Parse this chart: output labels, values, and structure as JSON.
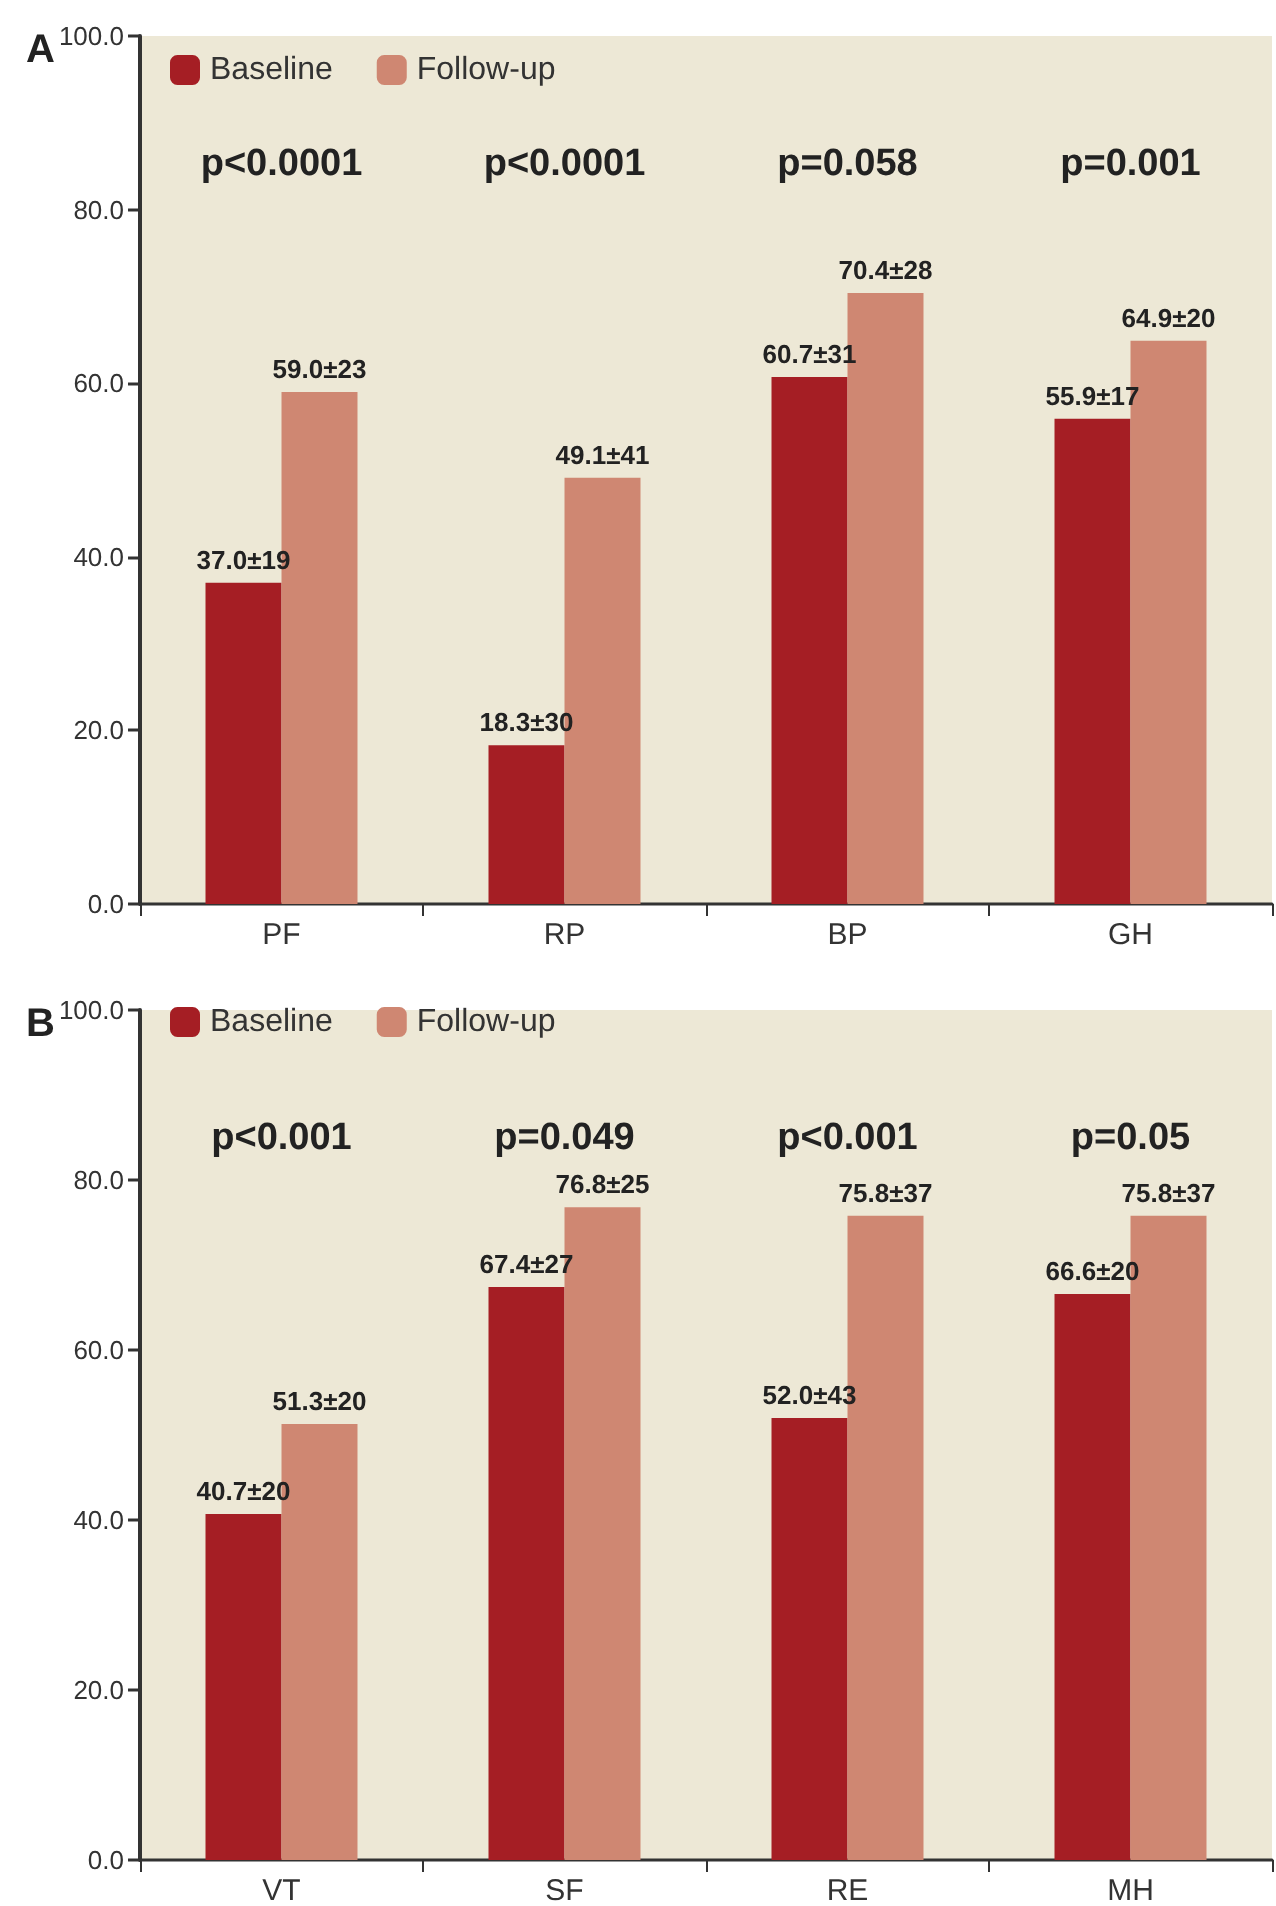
{
  "chart_data": [
    {
      "type": "bar",
      "title": "A",
      "categories": [
        "PF",
        "RP",
        "BP",
        "GH"
      ],
      "series": [
        {
          "name": "Baseline",
          "color": "#a51e24",
          "values": [
            37.0,
            18.3,
            60.7,
            55.9
          ],
          "value_labels": [
            "37.0±19",
            "18.3±30",
            "60.7±31",
            "55.9±17"
          ]
        },
        {
          "name": "Follow-up",
          "color": "#cf8772",
          "values": [
            59.0,
            49.1,
            70.4,
            64.9
          ],
          "value_labels": [
            "59.0±23",
            "49.1±41",
            "70.4±28",
            "64.9±20"
          ]
        }
      ],
      "ylim": [
        0,
        100
      ],
      "yticks": [
        {
          "value": 0,
          "label": "0.0"
        },
        {
          "value": 20,
          "label": "20.0"
        },
        {
          "value": 40,
          "label": "40.0"
        },
        {
          "value": 60,
          "label": "60.0"
        },
        {
          "value": 80,
          "label": "80.0"
        },
        {
          "value": 100,
          "label": "100.0"
        }
      ],
      "legend": "top left",
      "grid": false,
      "annotations": [
        "p<0.0001",
        "p<0.0001",
        "p=0.058",
        "p=0.001"
      ]
    },
    {
      "type": "bar",
      "title": "B",
      "categories": [
        "VT",
        "SF",
        "RE",
        "MH"
      ],
      "series": [
        {
          "name": "Baseline",
          "color": "#a51e24",
          "values": [
            40.7,
            67.4,
            52.0,
            66.6
          ],
          "value_labels": [
            "40.7±20",
            "67.4±27",
            "52.0±43",
            "66.6±20"
          ]
        },
        {
          "name": "Follow-up",
          "color": "#cf8772",
          "values": [
            51.3,
            76.8,
            75.8,
            75.8
          ],
          "value_labels": [
            "51.3±20",
            "76.8±25",
            "75.8±37",
            "75.8±37"
          ]
        }
      ],
      "ylim": [
        0,
        100
      ],
      "yticks": [
        {
          "value": 0,
          "label": "0.0"
        },
        {
          "value": 20,
          "label": "20.0"
        },
        {
          "value": 40,
          "label": "40.0"
        },
        {
          "value": 60,
          "label": "60.0"
        },
        {
          "value": 80,
          "label": "80.0"
        },
        {
          "value": 100,
          "label": "100.0"
        }
      ],
      "legend": "top left",
      "grid": false,
      "annotations": [
        "p<0.001",
        "p=0.049",
        "p<0.001",
        "p=0.05"
      ]
    }
  ]
}
